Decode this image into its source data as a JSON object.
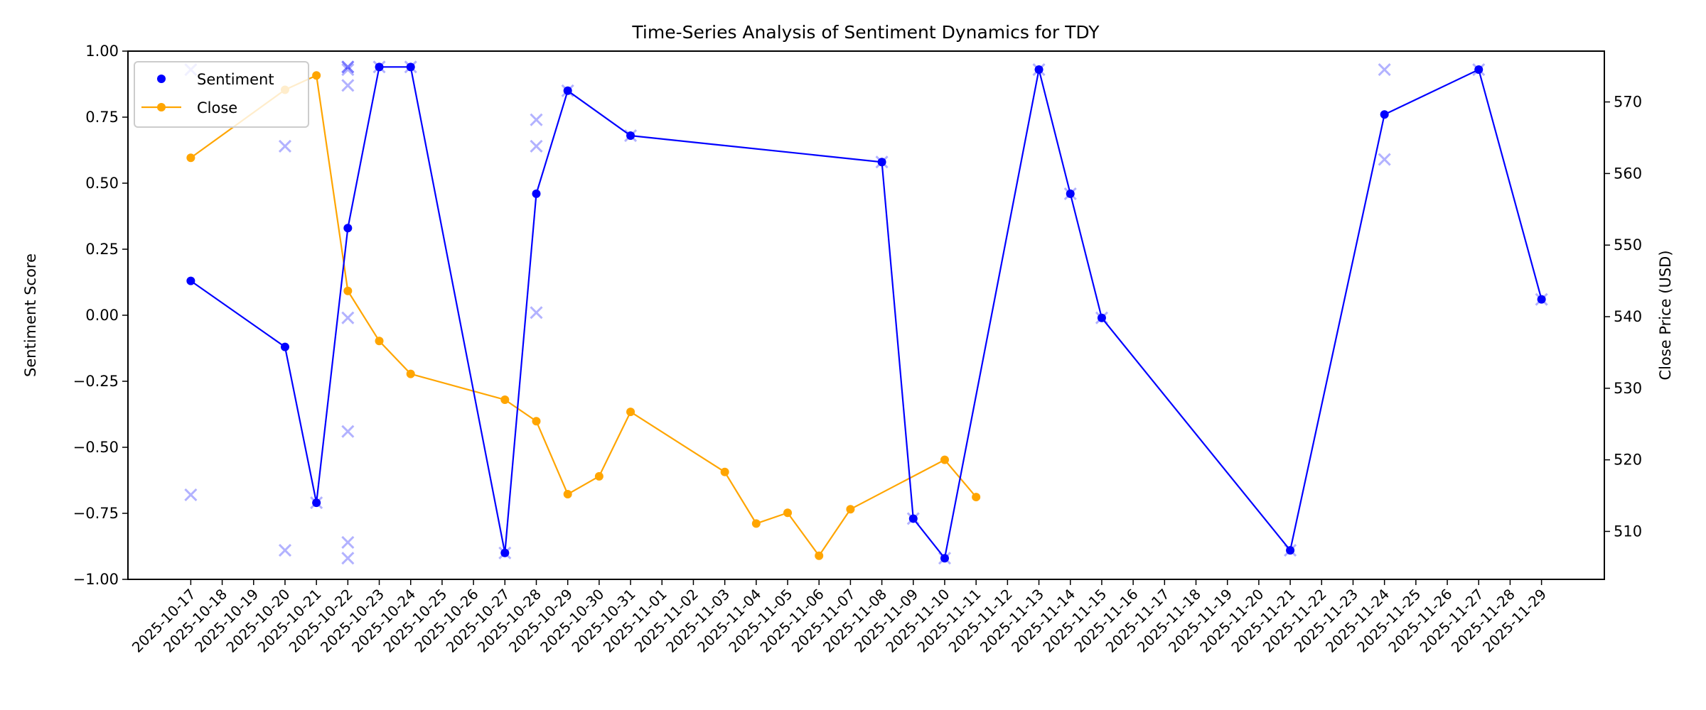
{
  "chart_data": {
    "type": "line",
    "title": "Time-Series Analysis of Sentiment Dynamics for TDY",
    "xlabel": "",
    "ylabel": "Sentiment Score",
    "ylabel_right": "Close Price (USD)",
    "ylim": [
      -1.0,
      1.0
    ],
    "ylim_right": [
      503.3,
      577.1
    ],
    "xlim": [
      "2025-10-15",
      "2025-12-01"
    ],
    "grid": false,
    "legend_placement": "top-left",
    "x_ticks": [
      "2025-10-17",
      "2025-10-18",
      "2025-10-19",
      "2025-10-20",
      "2025-10-21",
      "2025-10-22",
      "2025-10-23",
      "2025-10-24",
      "2025-10-25",
      "2025-10-26",
      "2025-10-27",
      "2025-10-28",
      "2025-10-29",
      "2025-10-30",
      "2025-10-31",
      "2025-11-01",
      "2025-11-02",
      "2025-11-03",
      "2025-11-04",
      "2025-11-05",
      "2025-11-06",
      "2025-11-07",
      "2025-11-08",
      "2025-11-09",
      "2025-11-10",
      "2025-11-11",
      "2025-11-12",
      "2025-11-13",
      "2025-11-14",
      "2025-11-15",
      "2025-11-16",
      "2025-11-17",
      "2025-11-18",
      "2025-11-19",
      "2025-11-20",
      "2025-11-21",
      "2025-11-22",
      "2025-11-23",
      "2025-11-24",
      "2025-11-25",
      "2025-11-26",
      "2025-11-27",
      "2025-11-28",
      "2025-11-29"
    ],
    "y_ticks": [
      "1.00",
      "0.75",
      "0.50",
      "0.25",
      "0.00",
      "−0.25",
      "−0.50",
      "−0.75",
      "−1.00"
    ],
    "y_tick_values": [
      1.0,
      0.75,
      0.5,
      0.25,
      0.0,
      -0.25,
      -0.5,
      -0.75,
      -1.0
    ],
    "y_ticks_right": [
      "510",
      "520",
      "530",
      "540",
      "550",
      "560",
      "570"
    ],
    "y_tick_values_right": [
      510,
      520,
      530,
      540,
      550,
      560,
      570
    ],
    "series": [
      {
        "name": "Sentiment",
        "axis": "left",
        "color": "#0000ff",
        "marker": "circle",
        "points": [
          [
            "2025-10-17",
            0.13
          ],
          [
            "2025-10-20",
            -0.12
          ],
          [
            "2025-10-21",
            -0.71
          ],
          [
            "2025-10-22",
            0.33
          ],
          [
            "2025-10-23",
            0.94
          ],
          [
            "2025-10-24",
            0.94
          ],
          [
            "2025-10-27",
            -0.9
          ],
          [
            "2025-10-28",
            0.46
          ],
          [
            "2025-10-29",
            0.85
          ],
          [
            "2025-10-31",
            0.68
          ],
          [
            "2025-11-08",
            0.58
          ],
          [
            "2025-11-09",
            -0.77
          ],
          [
            "2025-11-10",
            -0.92
          ],
          [
            "2025-11-13",
            0.93
          ],
          [
            "2025-11-14",
            0.46
          ],
          [
            "2025-11-15",
            -0.01
          ],
          [
            "2025-11-21",
            -0.89
          ],
          [
            "2025-11-24",
            0.76
          ],
          [
            "2025-11-27",
            0.93
          ],
          [
            "2025-11-29",
            0.06
          ]
        ]
      },
      {
        "name": "Close",
        "axis": "right",
        "color": "#ffa500",
        "marker": "circle",
        "points": [
          [
            "2025-10-17",
            562.2
          ],
          [
            "2025-10-20",
            571.7
          ],
          [
            "2025-10-21",
            573.7
          ],
          [
            "2025-10-22",
            543.6
          ],
          [
            "2025-10-23",
            536.6
          ],
          [
            "2025-10-24",
            532.0
          ],
          [
            "2025-10-27",
            528.4
          ],
          [
            "2025-10-28",
            525.4
          ],
          [
            "2025-10-29",
            515.2
          ],
          [
            "2025-10-30",
            517.7
          ],
          [
            "2025-10-31",
            526.7
          ],
          [
            "2025-11-03",
            518.3
          ],
          [
            "2025-11-04",
            511.1
          ],
          [
            "2025-11-05",
            512.6
          ],
          [
            "2025-11-06",
            506.6
          ],
          [
            "2025-11-07",
            513.1
          ],
          [
            "2025-11-10",
            520.0
          ],
          [
            "2025-11-11",
            514.8
          ]
        ]
      },
      {
        "axis": "left",
        "color": "#0000ff",
        "marker": "x",
        "opacity": 0.3,
        "points": [
          [
            "2025-10-17",
            0.93
          ],
          [
            "2025-10-17",
            -0.68
          ],
          [
            "2025-10-20",
            0.64
          ],
          [
            "2025-10-20",
            -0.89
          ],
          [
            "2025-10-21",
            -0.71
          ],
          [
            "2025-10-22",
            0.94
          ],
          [
            "2025-10-22",
            0.94
          ],
          [
            "2025-10-22",
            0.93
          ],
          [
            "2025-10-22",
            0.87
          ],
          [
            "2025-10-22",
            -0.01
          ],
          [
            "2025-10-22",
            -0.44
          ],
          [
            "2025-10-22",
            -0.86
          ],
          [
            "2025-10-22",
            -0.92
          ],
          [
            "2025-10-23",
            0.94
          ],
          [
            "2025-10-24",
            0.94
          ],
          [
            "2025-10-27",
            -0.9
          ],
          [
            "2025-10-28",
            0.74
          ],
          [
            "2025-10-28",
            0.64
          ],
          [
            "2025-10-28",
            0.01
          ],
          [
            "2025-10-29",
            0.85
          ],
          [
            "2025-10-31",
            0.68
          ],
          [
            "2025-11-08",
            0.58
          ],
          [
            "2025-11-09",
            -0.77
          ],
          [
            "2025-11-10",
            -0.92
          ],
          [
            "2025-11-13",
            0.93
          ],
          [
            "2025-11-14",
            0.46
          ],
          [
            "2025-11-15",
            -0.01
          ],
          [
            "2025-11-21",
            -0.89
          ],
          [
            "2025-11-24",
            0.93
          ],
          [
            "2025-11-24",
            0.59
          ],
          [
            "2025-11-27",
            0.93
          ],
          [
            "2025-11-29",
            0.06
          ]
        ]
      }
    ]
  }
}
